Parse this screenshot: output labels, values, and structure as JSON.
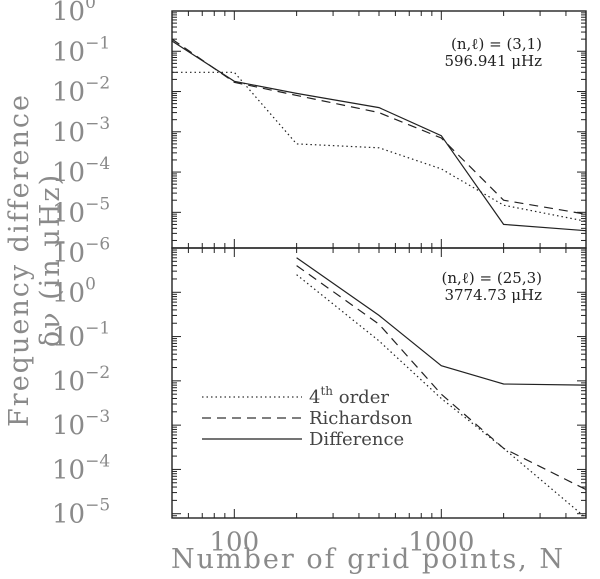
{
  "xlabel": "Number of grid points, N",
  "ylabel_line1": "Frequency difference",
  "ylabel_line2": "δν (in μHz)",
  "x_tick_labels": [
    "100",
    "1000"
  ],
  "legend": {
    "entry1": {
      "prefix": "4",
      "superscript": "th",
      "suffix": " order"
    },
    "entry2": "Richardson",
    "entry3": "Difference"
  },
  "panels": [
    {
      "annotation": {
        "mode": "(n,ℓ) = (3,1)",
        "frequency": "596.941 μHz"
      },
      "y_tick_exponents": [
        0,
        -1,
        -2,
        -3,
        -4,
        -5,
        -6
      ]
    },
    {
      "annotation": {
        "mode": "(n,ℓ) = (25,3)",
        "frequency": "3774.73 μHz"
      },
      "y_tick_exponents": [
        0,
        -1,
        -2,
        -3,
        -4,
        -5
      ]
    }
  ],
  "chart_data": [
    {
      "type": "line",
      "xscale": "log",
      "yscale": "log",
      "xlim": [
        50,
        5000
      ],
      "ylim": [
        1.3e-06,
        1
      ],
      "xlabel": "Number of grid points, N",
      "ylabel": "Frequency difference δν (in μHz)",
      "annotation": "(n,ℓ) = (3,1) 596.941 μHz",
      "series": [
        {
          "name": "4th order",
          "style": "dotted",
          "x": [
            50,
            100,
            200,
            500,
            1000,
            2000,
            5000
          ],
          "y": [
            0.03,
            0.03,
            0.0005,
            0.0004,
            0.00012,
            1.5e-05,
            6e-06
          ]
        },
        {
          "name": "Richardson",
          "style": "dashed",
          "x": [
            50,
            100,
            200,
            500,
            1000,
            2000,
            5000
          ],
          "y": [
            0.2,
            0.017,
            0.008,
            0.003,
            0.0007,
            2e-05,
            9e-06
          ]
        },
        {
          "name": "Difference",
          "style": "solid",
          "x": [
            50,
            100,
            200,
            500,
            1000,
            2000,
            5000
          ],
          "y": [
            0.18,
            0.018,
            0.009,
            0.004,
            0.0008,
            5e-06,
            3.5e-06
          ]
        }
      ]
    },
    {
      "type": "line",
      "xscale": "log",
      "yscale": "log",
      "xlim": [
        50,
        5000
      ],
      "ylim": [
        8e-06,
        10
      ],
      "xlabel": "Number of grid points, N",
      "ylabel": "Frequency difference δν (in μHz)",
      "annotation": "(n,ℓ) = (25,3) 3774.73 μHz",
      "series": [
        {
          "name": "4th order",
          "style": "dotted",
          "x": [
            200,
            500,
            1000,
            2000,
            5000
          ],
          "y": [
            2.5,
            0.08,
            0.004,
            0.0003,
            8e-06
          ]
        },
        {
          "name": "Richardson",
          "style": "dashed",
          "x": [
            200,
            500,
            1000,
            2000,
            5000
          ],
          "y": [
            4,
            0.19,
            0.005,
            0.0003,
            3.5e-05
          ]
        },
        {
          "name": "Difference",
          "style": "solid",
          "x": [
            200,
            500,
            1000,
            2000,
            5000
          ],
          "y": [
            6,
            0.3,
            0.022,
            0.0085,
            0.008
          ]
        }
      ]
    }
  ]
}
